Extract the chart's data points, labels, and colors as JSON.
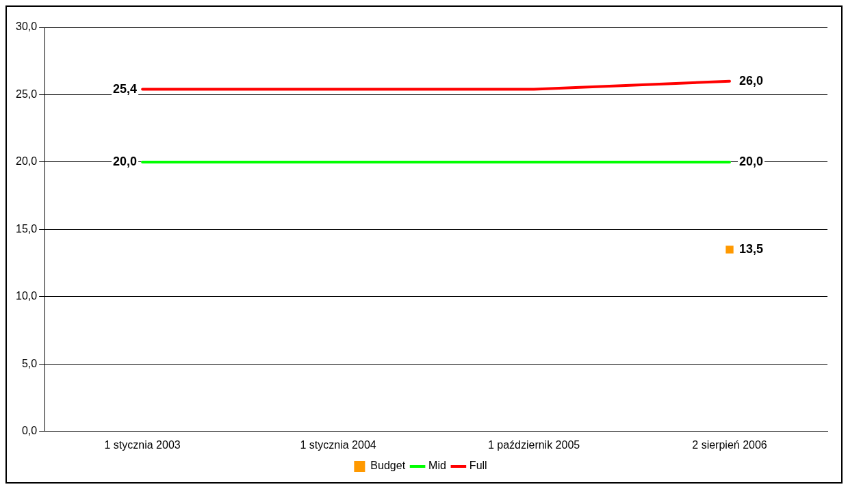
{
  "chart_data": {
    "type": "line",
    "categories": [
      "1 stycznia 2003",
      "1 stycznia 2004",
      "1 październik 2005",
      "2 sierpień 2006"
    ],
    "series": [
      {
        "name": "Budget",
        "color": "#ff9900",
        "marker": "square",
        "line_style": "solid",
        "values": [
          null,
          null,
          null,
          13.5
        ],
        "value_labels": [
          null,
          null,
          null,
          "13,5"
        ]
      },
      {
        "name": "Mid",
        "color": "#00ff00",
        "line_style": "solid",
        "values": [
          20,
          20,
          20,
          20
        ],
        "value_labels": [
          "20,0",
          null,
          null,
          "20,0"
        ]
      },
      {
        "name": "Full",
        "color": "#ff0000",
        "line_style": "solid",
        "values": [
          25.4,
          25.4,
          25.4,
          26
        ],
        "value_labels": [
          "25,4",
          null,
          null,
          "26,0"
        ]
      }
    ],
    "ylim": [
      0,
      30
    ],
    "yticks": [
      {
        "value": 0,
        "label": "0,0"
      },
      {
        "value": 5,
        "label": "5,0"
      },
      {
        "value": 10,
        "label": "10,0"
      },
      {
        "value": 15,
        "label": "15,0"
      },
      {
        "value": 20,
        "label": "20,0"
      },
      {
        "value": 25,
        "label": "25,0"
      },
      {
        "value": 30,
        "label": "30,0"
      }
    ],
    "grid": "y",
    "legend": "bottom"
  }
}
